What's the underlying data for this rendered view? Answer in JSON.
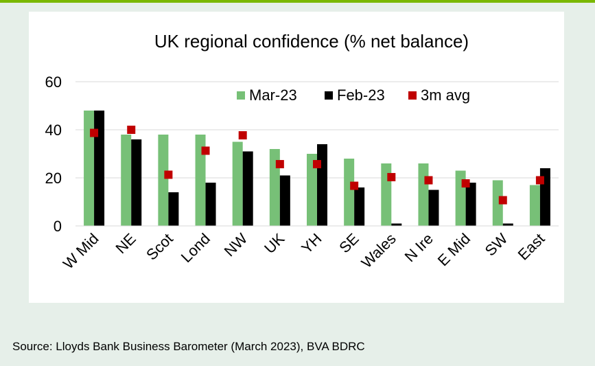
{
  "chart_data": {
    "type": "bar",
    "title": "UK regional confidence (% net balance)",
    "categories": [
      "W Mid",
      "NE",
      "Scot",
      "Lond",
      "NW",
      "UK",
      "YH",
      "SE",
      "Wales",
      "N Ire",
      "E Mid",
      "SW",
      "East"
    ],
    "series": [
      {
        "name": "Mar-23",
        "type": "bar",
        "color": "#77c077",
        "values": [
          48,
          38,
          38,
          38,
          35,
          32,
          30,
          28,
          26,
          26,
          23,
          19,
          17
        ]
      },
      {
        "name": "Feb-23",
        "type": "bar",
        "color": "#000000",
        "values": [
          48,
          36,
          14,
          18,
          31,
          21,
          34,
          16,
          1,
          15,
          18,
          1,
          24
        ]
      },
      {
        "name": "3m avg",
        "type": "marker",
        "color": "#c00000",
        "values": [
          38.7,
          40,
          21.3,
          31.3,
          37.7,
          25.7,
          25.7,
          16.7,
          20.3,
          19,
          17.7,
          10.7,
          19
        ]
      }
    ],
    "ylim": [
      0,
      60
    ],
    "yticks": [
      0,
      20,
      40,
      60
    ],
    "grid": true,
    "legend": "top-right"
  },
  "source": "Source: Lloyds Bank Business Barometer (March 2023), BVA BDRC"
}
